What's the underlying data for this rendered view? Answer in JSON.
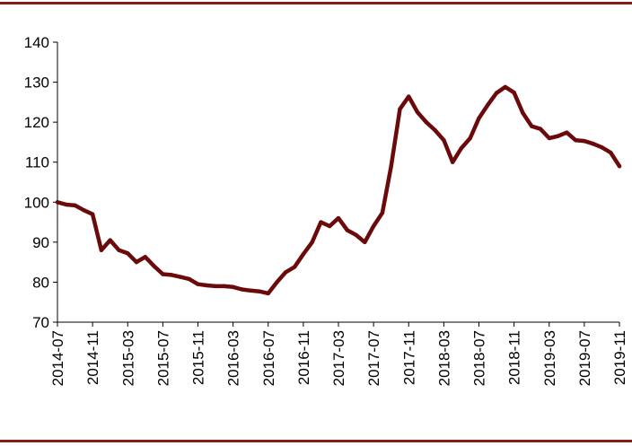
{
  "chart_data": {
    "type": "line",
    "title": "",
    "xlabel": "",
    "ylabel": "",
    "ylim": [
      70,
      140
    ],
    "yticks": [
      70,
      80,
      90,
      100,
      110,
      120,
      130,
      140
    ],
    "x_tick_labels": [
      "2014-07",
      "2014-11",
      "2015-03",
      "2015-07",
      "2015-11",
      "2016-03",
      "2016-07",
      "2016-11",
      "2017-03",
      "2017-07",
      "2017-11",
      "2018-03",
      "2018-07",
      "2018-11",
      "2019-03",
      "2019-07",
      "2019-11"
    ],
    "grid": false,
    "legend": "none",
    "line_color": "#6b0a0a",
    "series": [
      {
        "x": [
          "2014-07",
          "2014-08",
          "2014-09",
          "2014-10",
          "2014-11",
          "2014-12",
          "2015-01",
          "2015-02",
          "2015-03",
          "2015-04",
          "2015-05",
          "2015-06",
          "2015-07",
          "2015-08",
          "2015-09",
          "2015-10",
          "2015-11",
          "2015-12",
          "2016-01",
          "2016-02",
          "2016-03",
          "2016-04",
          "2016-05",
          "2016-06",
          "2016-07",
          "2016-08",
          "2016-09",
          "2016-10",
          "2016-11",
          "2016-12",
          "2017-01",
          "2017-02",
          "2017-03",
          "2017-04",
          "2017-05",
          "2017-06",
          "2017-07",
          "2017-08",
          "2017-09",
          "2017-10",
          "2017-11",
          "2017-12",
          "2018-01",
          "2018-02",
          "2018-03",
          "2018-04",
          "2018-05",
          "2018-06",
          "2018-07",
          "2018-08",
          "2018-09",
          "2018-10",
          "2018-11",
          "2018-12",
          "2019-01",
          "2019-02",
          "2019-03",
          "2019-04",
          "2019-05",
          "2019-06",
          "2019-07",
          "2019-08",
          "2019-09",
          "2019-10",
          "2019-11"
        ],
        "values": [
          100,
          99.4,
          99.2,
          98,
          97,
          88,
          90.5,
          88,
          87.2,
          85,
          86.3,
          84,
          82,
          81.8,
          81.3,
          80.8,
          79.5,
          79.2,
          79,
          79,
          78.8,
          78.2,
          77.9,
          77.7,
          77.2,
          80,
          82.5,
          83.8,
          87,
          90,
          95,
          94,
          96,
          93,
          91.8,
          90,
          94,
          97.3,
          109,
          123.3,
          126.4,
          122.5,
          120,
          118,
          115.5,
          110,
          113.5,
          116,
          121,
          124.3,
          127.3,
          128.8,
          127.4,
          122.3,
          119,
          118.3,
          116,
          116.5,
          117.4,
          115.5,
          115.3,
          114.6,
          113.7,
          112.4,
          109
        ]
      }
    ]
  }
}
